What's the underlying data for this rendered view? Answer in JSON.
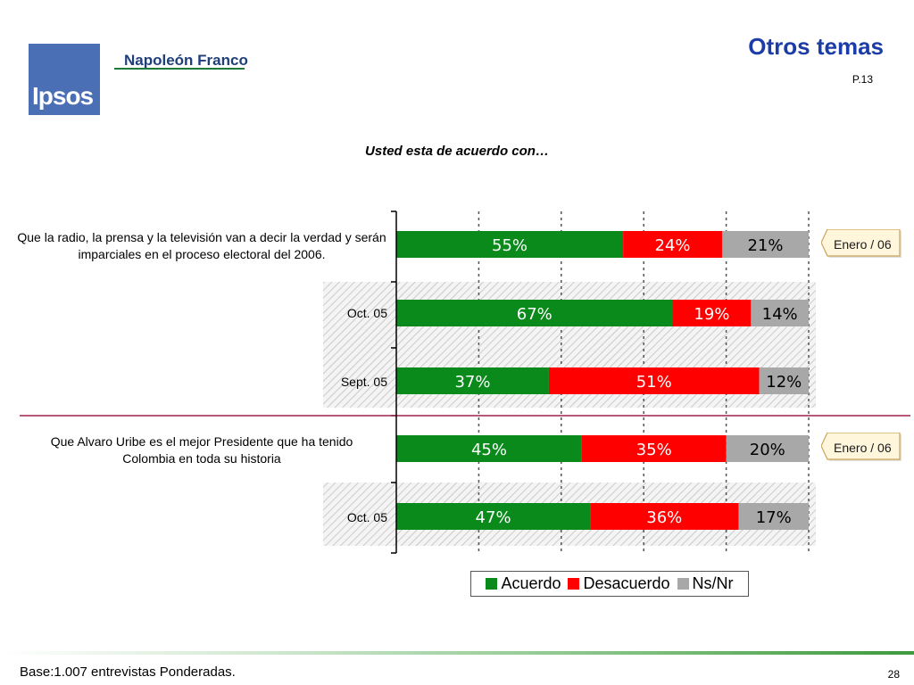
{
  "header": {
    "logo_text": "Ipsos",
    "brand": "Napoleón Franco",
    "title": "Otros temas",
    "page_code": "P.13"
  },
  "colors": {
    "acuerdo": "#0a8a1a",
    "desacuerdo": "#ff0000",
    "ns_nr": "#a8a8a8",
    "title": "#1c3ca8"
  },
  "chart_data": {
    "type": "bar",
    "orientation": "horizontal",
    "stacked": true,
    "percent": true,
    "title": "Usted esta de acuerdo con…",
    "questions": [
      {
        "label": "Que la radio, la prensa y la televisión van a decir la verdad y serán imparciales en el proceso electoral del 2006.",
        "current_badge": "Enero / 06",
        "rows": [
          {
            "period": "",
            "values": {
              "Acuerdo": 55,
              "Desacuerdo": 24,
              "Ns/Nr": 21
            }
          },
          {
            "period": "Oct. 05",
            "values": {
              "Acuerdo": 67,
              "Desacuerdo": 19,
              "Ns/Nr": 14
            }
          },
          {
            "period": "Sept. 05",
            "values": {
              "Acuerdo": 37,
              "Desacuerdo": 51,
              "Ns/Nr": 12
            }
          }
        ]
      },
      {
        "label": "Que Alvaro Uribe es el mejor Presidente que ha tenido Colombia en toda su historia",
        "current_badge": "Enero / 06",
        "rows": [
          {
            "period": "",
            "values": {
              "Acuerdo": 45,
              "Desacuerdo": 35,
              "Ns/Nr": 20
            }
          },
          {
            "period": "Oct. 05",
            "values": {
              "Acuerdo": 47,
              "Desacuerdo": 36,
              "Ns/Nr": 17
            }
          }
        ]
      }
    ],
    "series": [
      {
        "name": "Acuerdo",
        "values": [
          55,
          67,
          37,
          45,
          47
        ]
      },
      {
        "name": "Desacuerdo",
        "values": [
          24,
          19,
          51,
          35,
          36
        ]
      },
      {
        "name": "Ns/Nr",
        "values": [
          21,
          14,
          12,
          20,
          17
        ]
      }
    ],
    "xlim": [
      0,
      100
    ],
    "grid": true,
    "legend_position": "bottom"
  },
  "footer": {
    "base_note": "Base:1.007 entrevistas Ponderadas.",
    "page_number": "28"
  }
}
